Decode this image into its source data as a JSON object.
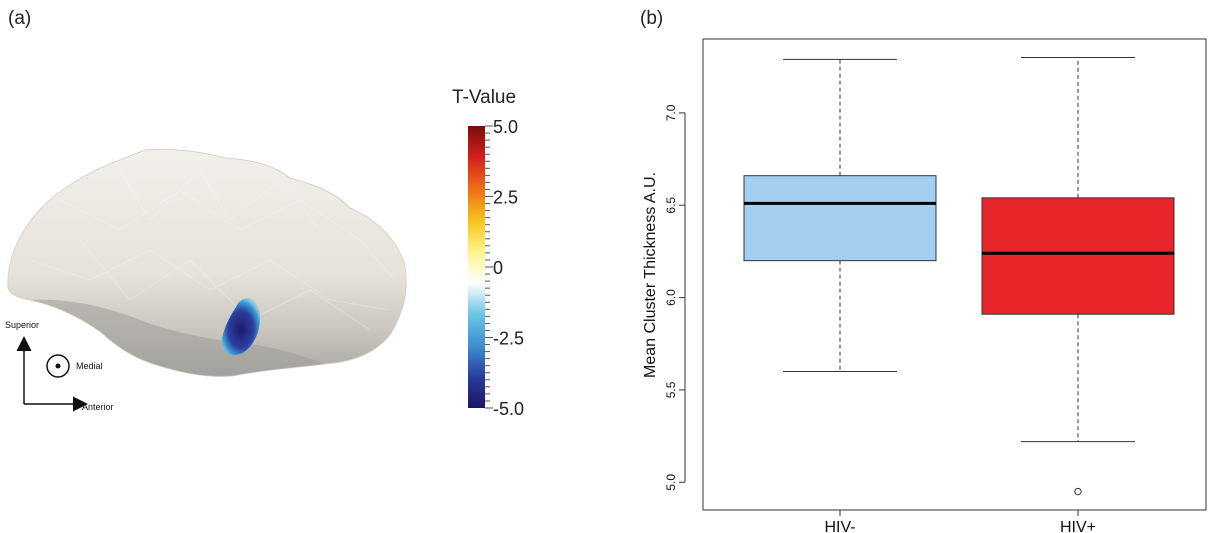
{
  "panels": {
    "a": {
      "label": "(a)"
    },
    "b": {
      "label": "(b)"
    }
  },
  "colorbar": {
    "title": "T-Value",
    "ticks": [
      {
        "value": 5.0,
        "label": "5.0"
      },
      {
        "value": 2.5,
        "label": "2.5"
      },
      {
        "value": 0,
        "label": "0"
      },
      {
        "value": -2.5,
        "label": "-2.5"
      },
      {
        "value": -5.0,
        "label": "-5.0"
      }
    ],
    "range": [
      -5.0,
      5.0
    ],
    "colors": [
      "#1b1464",
      "#2a3d9c",
      "#3d8fd0",
      "#6cc6e6",
      "#ffffff",
      "#fff48a",
      "#f7c21a",
      "#ee6e16",
      "#d4201c",
      "#7a0c0c"
    ]
  },
  "orientation": {
    "superior": "Superior",
    "medial": "Medial",
    "anterior": "Anterior"
  },
  "chart_data": {
    "type": "boxplot",
    "ylabel": "Mean Cluster Thickness A.U.",
    "ylim": [
      4.85,
      7.4
    ],
    "yticks": [
      5.0,
      5.5,
      6.0,
      6.5,
      7.0
    ],
    "yticklabels": [
      "5.0",
      "5.5",
      "6.0",
      "6.5",
      "7.0"
    ],
    "categories": [
      "HIV-",
      "HIV+"
    ],
    "boxes": [
      {
        "name": "HIV-",
        "whisker_low": 5.6,
        "q1": 6.2,
        "median": 6.51,
        "q3": 6.66,
        "whisker_high": 7.29,
        "outliers": [],
        "color": "#a4cff0"
      },
      {
        "name": "HIV+",
        "whisker_low": 5.22,
        "q1": 5.91,
        "median": 6.24,
        "q3": 6.54,
        "whisker_high": 7.3,
        "outliers": [
          4.95
        ],
        "color": "#e8262a"
      }
    ]
  }
}
